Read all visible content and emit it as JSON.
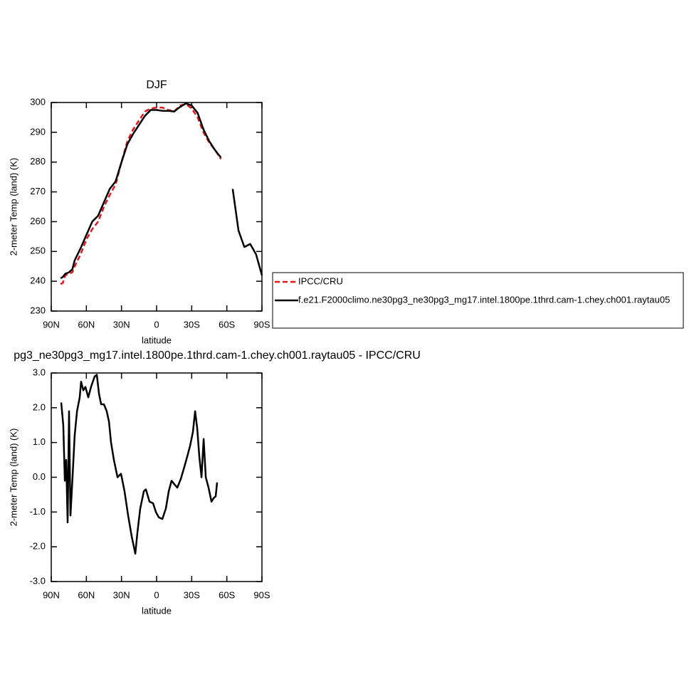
{
  "chart_data": [
    {
      "type": "line",
      "title": "DJF",
      "x_label": "latitude",
      "y_label": "2-meter Temp (land) (K)",
      "x": [
        82,
        80,
        78,
        75,
        72,
        70,
        65,
        60,
        55,
        50,
        45,
        40,
        35,
        30,
        25,
        20,
        15,
        10,
        5,
        0,
        -5,
        -10,
        -15,
        -20,
        -25,
        -30,
        -35,
        -40,
        -45,
        -50,
        -55,
        -60,
        -65,
        -70,
        -75,
        -80,
        -85,
        -90
      ],
      "series": [
        {
          "name": "IPCC/CRU",
          "color": "#e8141b",
          "line_style": "dashed",
          "values": [
            239,
            239.5,
            242,
            242.5,
            243,
            245,
            249,
            254,
            257.5,
            260,
            265,
            269,
            272.5,
            280,
            287,
            291,
            294,
            297,
            298,
            298.3,
            298.3,
            297.5,
            297,
            299,
            299.5,
            298,
            295,
            290,
            286.5,
            284,
            281,
            null,
            null,
            null,
            null,
            null,
            null,
            null
          ]
        },
        {
          "name": "f.e21.F2000climo.ne30pg3_ne30pg3_mg17.intel.1800pe.1thrd.cam-1.chey.ch001.raytau05",
          "color": "#000000",
          "line_style": "solid",
          "values": [
            241,
            241.5,
            242.5,
            243,
            244,
            247,
            251,
            255.5,
            260,
            262,
            266.5,
            271,
            273.5,
            280,
            286,
            289.5,
            292.5,
            295.5,
            297.5,
            297.5,
            297.2,
            297.2,
            297,
            298.5,
            299.7,
            299,
            296.5,
            291,
            287,
            284,
            281.5,
            null,
            271,
            257,
            251.5,
            252.5,
            249,
            242
          ]
        }
      ],
      "xlim": [
        90,
        -90
      ],
      "xticks": [
        {
          "value": 90,
          "label": "90N"
        },
        {
          "value": 60,
          "label": "60N"
        },
        {
          "value": 30,
          "label": "30N"
        },
        0,
        {
          "value": -30,
          "label": "30S"
        },
        {
          "value": -60,
          "label": "60S"
        },
        {
          "value": -90,
          "label": "90S"
        }
      ],
      "ylim": [
        230,
        300
      ],
      "yticks": [
        230,
        240,
        250,
        260,
        270,
        280,
        290,
        300
      ],
      "legend": "right"
    },
    {
      "type": "line",
      "title": "pg3_ne30pg3_mg17.intel.1800pe.1thrd.cam-1.chey.ch001.raytau05 - IPCC/CRU",
      "x_label": "latitude",
      "y_label": "2-meter Temp (land) (K)",
      "x": [
        81.5,
        79.7,
        78.4,
        77.2,
        76,
        74.8,
        73.6,
        71.8,
        70,
        68,
        65.7,
        64.5,
        62.6,
        60.8,
        58.4,
        56,
        52.9,
        51.1,
        49.2,
        47.4,
        45,
        42.6,
        40.7,
        38.9,
        36.5,
        33.4,
        30.4,
        27.4,
        24.3,
        21.3,
        18.2,
        16.4,
        14,
        10.9,
        9.1,
        6.1,
        3,
        0.6,
        -1.8,
        -4.9,
        -7.9,
        -10.4,
        -12.8,
        -15.2,
        -17.7,
        -20.7,
        -23.7,
        -26.2,
        -28.6,
        -31,
        -32.9,
        -34.7,
        -36.5,
        -38.4,
        -40.2,
        -42,
        -44.4,
        -46.9,
        -48.7,
        -50.5,
        -51.7
      ],
      "series": [
        {
          "color": "#000000",
          "line_style": "solid",
          "values": [
            2.15,
            1.5,
            -0.1,
            0.5,
            -1.3,
            1.9,
            -1.1,
            0,
            1.2,
            1.9,
            2.3,
            2.75,
            2.5,
            2.6,
            2.3,
            2.6,
            2.9,
            2.95,
            2.4,
            2.1,
            2.1,
            1.9,
            1.6,
            1,
            0.5,
            0,
            0.1,
            -0.4,
            -1.1,
            -1.7,
            -2.2,
            -1.6,
            -0.9,
            -0.4,
            -0.35,
            -0.7,
            -0.75,
            -1,
            -1.15,
            -1.2,
            -0.9,
            -0.4,
            -0.1,
            -0.2,
            -0.3,
            -0.05,
            0.3,
            0.6,
            0.9,
            1.3,
            1.9,
            1.4,
            0.6,
            0,
            1.1,
            0,
            -0.3,
            -0.7,
            -0.6,
            -0.55,
            -0.15
          ]
        }
      ],
      "xlim": [
        90,
        -90
      ],
      "xticks": [
        {
          "value": 90,
          "label": "90N"
        },
        {
          "value": 60,
          "label": "60N"
        },
        {
          "value": 30,
          "label": "30N"
        },
        0,
        {
          "value": -30,
          "label": "30S"
        },
        {
          "value": -60,
          "label": "60S"
        },
        {
          "value": -90,
          "label": "90S"
        }
      ],
      "ylim": [
        -3,
        3
      ],
      "yticks": [
        {
          "value": -3,
          "label": "-3.0"
        },
        {
          "value": -2,
          "label": "-2.0"
        },
        {
          "value": -1,
          "label": "-1.0"
        },
        {
          "value": 0,
          "label": "0.0"
        },
        {
          "value": 1,
          "label": "1.0"
        },
        {
          "value": 2,
          "label": "2.0"
        },
        {
          "value": 3,
          "label": "3.0"
        }
      ]
    }
  ]
}
